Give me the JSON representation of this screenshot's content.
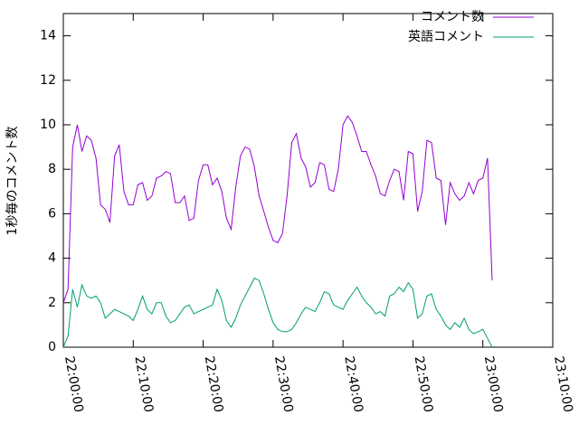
{
  "chart_data": {
    "type": "line",
    "y_label": "1秒毎のコメント数",
    "x": [
      "22:00:00",
      "22:00:40",
      "22:01:20",
      "22:02:00",
      "22:02:40",
      "22:03:20",
      "22:04:00",
      "22:04:40",
      "22:05:20",
      "22:06:00",
      "22:06:40",
      "22:07:20",
      "22:08:00",
      "22:08:40",
      "22:09:20",
      "22:10:00",
      "22:10:40",
      "22:11:20",
      "22:12:00",
      "22:12:40",
      "22:13:20",
      "22:14:00",
      "22:14:40",
      "22:15:20",
      "22:16:00",
      "22:16:40",
      "22:17:20",
      "22:18:00",
      "22:18:40",
      "22:19:20",
      "22:20:00",
      "22:20:40",
      "22:21:20",
      "22:22:00",
      "22:22:40",
      "22:23:20",
      "22:24:00",
      "22:24:40",
      "22:25:20",
      "22:26:00",
      "22:26:40",
      "22:27:20",
      "22:28:00",
      "22:28:40",
      "22:29:20",
      "22:30:00",
      "22:30:40",
      "22:31:20",
      "22:32:00",
      "22:32:40",
      "22:33:20",
      "22:34:00",
      "22:34:40",
      "22:35:20",
      "22:36:00",
      "22:36:40",
      "22:37:20",
      "22:38:00",
      "22:38:40",
      "22:39:20",
      "22:40:00",
      "22:40:40",
      "22:41:20",
      "22:42:00",
      "22:42:40",
      "22:43:20",
      "22:44:00",
      "22:44:40",
      "22:45:20",
      "22:46:00",
      "22:46:40",
      "22:47:20",
      "22:48:00",
      "22:48:40",
      "22:49:20",
      "22:50:00",
      "22:50:40",
      "22:51:20",
      "22:52:00",
      "22:52:40",
      "22:53:20",
      "22:54:00",
      "22:54:40",
      "22:55:20",
      "22:56:00",
      "22:56:40",
      "22:57:20",
      "22:58:00",
      "22:58:40",
      "22:59:20",
      "23:00:00",
      "23:00:40",
      "23:01:20"
    ],
    "series": [
      {
        "name": "コメント数",
        "color": "#9400d3",
        "values": [
          2,
          2.6,
          9,
          10,
          8.8,
          9.5,
          9.3,
          8.5,
          6.4,
          6.2,
          5.6,
          8.6,
          9.1,
          7,
          6.4,
          6.4,
          7.3,
          7.4,
          6.6,
          6.8,
          7.6,
          7.7,
          7.9,
          7.8,
          6.5,
          6.5,
          6.8,
          5.7,
          5.8,
          7.5,
          8.2,
          8.2,
          7.3,
          7.6,
          7,
          5.8,
          5.3,
          7.2,
          8.6,
          9,
          8.9,
          8.1,
          6.8,
          6.1,
          5.4,
          4.8,
          4.7,
          5.1,
          6.8,
          9.2,
          9.6,
          8.5,
          8.1,
          7.2,
          7.4,
          8.3,
          8.2,
          7.1,
          7,
          8,
          10,
          10.4,
          10.1,
          9.5,
          8.8,
          8.8,
          8.2,
          7.7,
          6.9,
          6.8,
          7.5,
          8,
          7.9,
          6.6,
          8.8,
          8.7,
          6.1,
          7,
          9.3,
          9.2,
          7.6,
          7.5,
          5.5,
          7.4,
          6.9,
          6.6,
          6.8,
          7.4,
          6.9,
          7.5,
          7.6,
          8.5,
          3
        ]
      },
      {
        "name": "英語コメント",
        "color": "#009e73",
        "values": [
          0,
          0.5,
          2.6,
          1.8,
          2.8,
          2.3,
          2.2,
          2.3,
          2,
          1.3,
          1.5,
          1.7,
          1.6,
          1.5,
          1.4,
          1.2,
          1.7,
          2.3,
          1.7,
          1.5,
          2,
          2,
          1.4,
          1.1,
          1.2,
          1.5,
          1.8,
          1.9,
          1.5,
          1.6,
          1.7,
          1.8,
          1.9,
          2.6,
          2.1,
          1.2,
          0.9,
          1.3,
          1.9,
          2.3,
          2.7,
          3.1,
          3,
          2.4,
          1.7,
          1.1,
          0.8,
          0.7,
          0.7,
          0.8,
          1.1,
          1.5,
          1.8,
          1.7,
          1.6,
          2,
          2.5,
          2.4,
          1.9,
          1.8,
          1.7,
          2.1,
          2.4,
          2.7,
          2.3,
          2,
          1.8,
          1.5,
          1.6,
          1.4,
          2.3,
          2.4,
          2.7,
          2.5,
          2.9,
          2.6,
          1.3,
          1.5,
          2.3,
          2.4,
          1.7,
          1.4,
          1,
          0.8,
          1.1,
          0.9,
          1.3,
          0.8,
          0.6,
          0.7,
          0.8,
          0.4,
          0
        ]
      }
    ],
    "xlim": [
      "22:00:00",
      "23:10:00"
    ],
    "xticks": [
      "22:00:00",
      "22:10:00",
      "22:20:00",
      "22:30:00",
      "22:40:00",
      "22:50:00",
      "23:00:00",
      "23:10:00"
    ],
    "ylim": [
      0,
      15
    ],
    "yticks": [
      0,
      2,
      4,
      6,
      8,
      10,
      12,
      14
    ],
    "grid": false,
    "legend": "top-right"
  }
}
